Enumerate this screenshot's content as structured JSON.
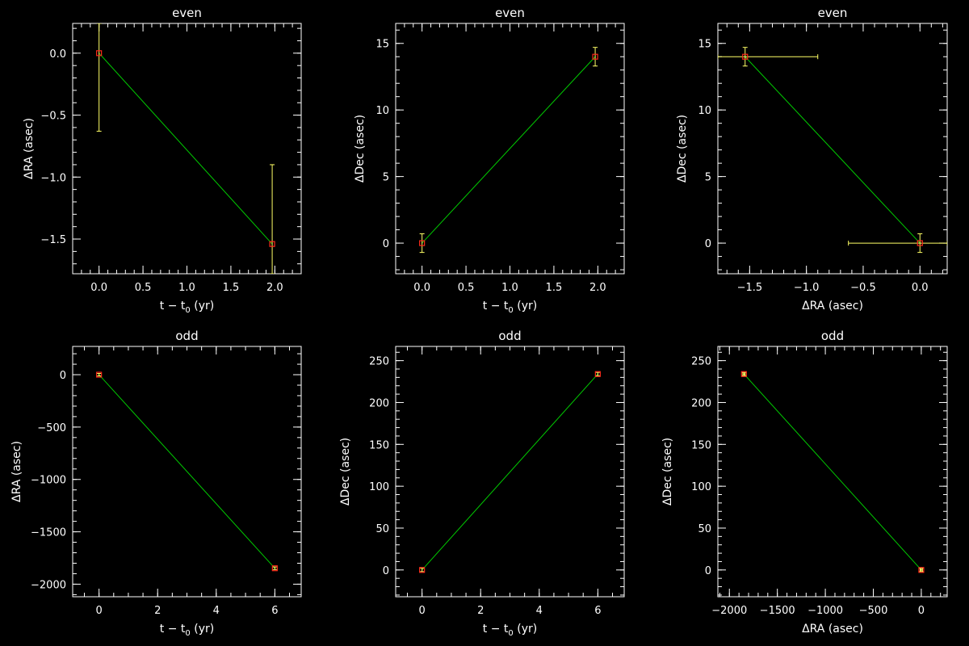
{
  "colors": {
    "background": "#000000",
    "axes": "#ffffff",
    "fit_line": "#00cc00",
    "error_bar": "#ffff66",
    "marker": "#ff2a1a"
  },
  "chart_data": [
    {
      "type": "scatter",
      "title": "even",
      "xlabel": "t − t0 (yr)",
      "ylabel": "ΔRA (asec)",
      "xlim": [
        -0.3,
        2.3
      ],
      "ylim": [
        -1.78,
        0.24
      ],
      "xticks": [
        0.0,
        0.5,
        1.0,
        1.5,
        2.0
      ],
      "xtick_labels": [
        "0.0",
        "0.5",
        "1.0",
        "1.5",
        "2.0"
      ],
      "yticks": [
        -1.5,
        -1.0,
        -0.5,
        0.0
      ],
      "ytick_labels": [
        "−1.5",
        "−1.0",
        "−0.5",
        "0.0"
      ],
      "points": [
        {
          "x": 0.0,
          "y": 0.0,
          "yerr": [
            0.63,
            0.24
          ]
        },
        {
          "x": 1.97,
          "y": -1.54,
          "yerr": [
            0.24,
            0.64
          ]
        }
      ],
      "line": [
        [
          0.0,
          0.0
        ],
        [
          1.97,
          -1.54
        ]
      ]
    },
    {
      "type": "scatter",
      "title": "even",
      "xlabel": "t − t0 (yr)",
      "ylabel": "ΔDec (asec)",
      "xlim": [
        -0.3,
        2.3
      ],
      "ylim": [
        -2.3,
        16.5
      ],
      "xticks": [
        0.0,
        0.5,
        1.0,
        1.5,
        2.0
      ],
      "xtick_labels": [
        "0.0",
        "0.5",
        "1.0",
        "1.5",
        "2.0"
      ],
      "yticks": [
        0,
        5,
        10,
        15
      ],
      "ytick_labels": [
        "0",
        "5",
        "10",
        "15"
      ],
      "points": [
        {
          "x": 0.0,
          "y": 0.0,
          "yerr": [
            0.7,
            0.7
          ]
        },
        {
          "x": 1.97,
          "y": 14.0,
          "yerr": [
            0.7,
            0.7
          ]
        }
      ],
      "line": [
        [
          0.0,
          0.0
        ],
        [
          1.97,
          14.0
        ]
      ]
    },
    {
      "type": "scatter",
      "title": "even",
      "xlabel": "ΔRA (asec)",
      "ylabel": "ΔDec (asec)",
      "xlim": [
        -1.78,
        0.24
      ],
      "ylim": [
        -2.3,
        16.5
      ],
      "xticks": [
        -1.5,
        -1.0,
        -0.5,
        0.0
      ],
      "xtick_labels": [
        "−1.5",
        "−1.0",
        "−0.5",
        "0.0"
      ],
      "yticks": [
        0,
        5,
        10,
        15
      ],
      "ytick_labels": [
        "0",
        "5",
        "10",
        "15"
      ],
      "points": [
        {
          "x": -1.54,
          "y": 14.0,
          "xerr": [
            0.24,
            0.64
          ],
          "yerr": [
            0.7,
            0.7
          ]
        },
        {
          "x": 0.0,
          "y": 0.0,
          "xerr": [
            0.63,
            0.24
          ],
          "yerr": [
            0.7,
            0.7
          ]
        }
      ],
      "line": [
        [
          -1.54,
          14.0
        ],
        [
          0.0,
          0.0
        ]
      ]
    },
    {
      "type": "scatter",
      "title": "odd",
      "xlabel": "t − t0 (yr)",
      "ylabel": "ΔRA (asec)",
      "xlim": [
        -0.9,
        6.9
      ],
      "ylim": [
        -2120,
        270
      ],
      "xticks": [
        0,
        2,
        4,
        6
      ],
      "xtick_labels": [
        "0",
        "2",
        "4",
        "6"
      ],
      "yticks": [
        -2000,
        -1500,
        -1000,
        -500,
        0
      ],
      "ytick_labels": [
        "−2000",
        "−1500",
        "−1000",
        "−500",
        "0"
      ],
      "points": [
        {
          "x": 0.0,
          "y": 0.0,
          "yerr": [
            12,
            12
          ]
        },
        {
          "x": 6.0,
          "y": -1848,
          "yerr": [
            12,
            12
          ]
        }
      ],
      "line": [
        [
          0.0,
          0.0
        ],
        [
          6.0,
          -1848
        ]
      ]
    },
    {
      "type": "scatter",
      "title": "odd",
      "xlabel": "t − t0 (yr)",
      "ylabel": "ΔDec (asec)",
      "xlim": [
        -0.9,
        6.9
      ],
      "ylim": [
        -32,
        267
      ],
      "xticks": [
        0,
        2,
        4,
        6
      ],
      "xtick_labels": [
        "0",
        "2",
        "4",
        "6"
      ],
      "yticks": [
        0,
        50,
        100,
        150,
        200,
        250
      ],
      "ytick_labels": [
        "0",
        "50",
        "100",
        "150",
        "200",
        "250"
      ],
      "points": [
        {
          "x": 0.0,
          "y": 0.0,
          "yerr": [
            2,
            2
          ]
        },
        {
          "x": 6.0,
          "y": 234,
          "yerr": [
            2,
            2
          ]
        }
      ],
      "line": [
        [
          0.0,
          0.0
        ],
        [
          6.0,
          234
        ]
      ]
    },
    {
      "type": "scatter",
      "title": "odd",
      "xlabel": "ΔRA (asec)",
      "ylabel": "ΔDec (asec)",
      "xlim": [
        -2120,
        270
      ],
      "ylim": [
        -32,
        267
      ],
      "xticks": [
        -2000,
        -1500,
        -1000,
        -500,
        0
      ],
      "xtick_labels": [
        "−2000",
        "−1500",
        "−1000",
        "−500",
        "0"
      ],
      "yticks": [
        0,
        50,
        100,
        150,
        200,
        250
      ],
      "ytick_labels": [
        "0",
        "50",
        "100",
        "150",
        "200",
        "250"
      ],
      "points": [
        {
          "x": -1848,
          "y": 234,
          "xerr": [
            12,
            12
          ],
          "yerr": [
            2,
            2
          ]
        },
        {
          "x": 0.0,
          "y": 0.0,
          "xerr": [
            12,
            12
          ],
          "yerr": [
            2,
            2
          ]
        }
      ],
      "line": [
        [
          -1848,
          234
        ],
        [
          0.0,
          0.0
        ]
      ]
    }
  ]
}
